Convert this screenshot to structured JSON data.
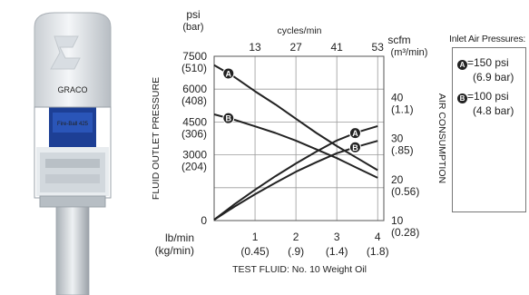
{
  "legend": {
    "title": "Inlet Air Pressures:",
    "items": [
      {
        "badge": "A",
        "label": "=150 psi",
        "sub": "(6.9 bar)"
      },
      {
        "badge": "B",
        "label": "=100 psi",
        "sub": "(4.8 bar)"
      }
    ]
  },
  "pump": {
    "brand": "GRACO",
    "badge_text": "Fire-Ball 425"
  },
  "chart_data": {
    "type": "line",
    "title": "",
    "xlabel": "TEST FLUID: No. 10 Weight Oil",
    "x_unit_label": "lb/min",
    "x_unit_label_alt": "(kg/min)",
    "xlim": [
      0,
      4.15
    ],
    "x_ticks": [
      {
        "value": 1,
        "label": "1",
        "alt": "(0.45)"
      },
      {
        "value": 2,
        "label": "2",
        "alt": "(.9)"
      },
      {
        "value": 3,
        "label": "3",
        "alt": "(1.4)"
      },
      {
        "value": 4,
        "label": "4",
        "alt": "(1.8)"
      }
    ],
    "top_axis": {
      "label": "cycles/min",
      "ticks": [
        {
          "value": 1,
          "label": "13"
        },
        {
          "value": 2,
          "label": "27"
        },
        {
          "value": 3,
          "label": "41"
        },
        {
          "value": 4,
          "label": "53"
        }
      ]
    },
    "left_axis": {
      "label": "FLUID OUTLET PRESSURE",
      "unit": "psi",
      "unit_alt": "(bar)",
      "ylim": [
        0,
        7500
      ],
      "ticks": [
        {
          "value": 0,
          "label": "0",
          "alt": ""
        },
        {
          "value": 1500,
          "label": "",
          "alt": ""
        },
        {
          "value": 3000,
          "label": "3000",
          "alt": "(204)"
        },
        {
          "value": 4500,
          "label": "4500",
          "alt": "(306)"
        },
        {
          "value": 6000,
          "label": "6000",
          "alt": "(408)"
        },
        {
          "value": 7500,
          "label": "7500",
          "alt": "(510)"
        }
      ]
    },
    "right_axis": {
      "label": "AIR CONSUMPTION",
      "unit": "scfm",
      "unit_alt": "(m³/min)",
      "ylim": [
        10,
        50
      ],
      "ticks": [
        {
          "value": 10,
          "label": "10",
          "alt": "(0.28)"
        },
        {
          "value": 20,
          "label": "20",
          "alt": "(0.56)"
        },
        {
          "value": 30,
          "label": "30",
          "alt": "(.85)"
        },
        {
          "value": 40,
          "label": "40",
          "alt": "(1.1)"
        }
      ]
    },
    "grid": true,
    "series": [
      {
        "name": "A",
        "kind": "fluid outlet pressure",
        "axis": "left",
        "x": [
          0,
          0.5,
          1,
          1.5,
          2,
          2.5,
          3,
          3.5,
          4
        ],
        "y": [
          7100,
          6550,
          5900,
          5300,
          4650,
          4000,
          3400,
          2850,
          2300
        ]
      },
      {
        "name": "B",
        "kind": "fluid outlet pressure",
        "axis": "left",
        "x": [
          0,
          0.5,
          1,
          1.5,
          2,
          2.5,
          3,
          3.5,
          4
        ],
        "y": [
          4850,
          4600,
          4300,
          4000,
          3650,
          3250,
          2850,
          2400,
          1950
        ]
      },
      {
        "name": "A",
        "kind": "air consumption",
        "axis": "right",
        "x": [
          0,
          0.5,
          1,
          1.5,
          2,
          2.5,
          3,
          3.5,
          4
        ],
        "y": [
          10.2,
          14.0,
          17.5,
          20.8,
          23.9,
          26.8,
          29.5,
          31.5,
          33.0
        ]
      },
      {
        "name": "B",
        "kind": "air consumption",
        "axis": "right",
        "x": [
          0,
          0.5,
          1,
          1.5,
          2,
          2.5,
          3,
          3.5,
          4
        ],
        "y": [
          10.2,
          13.4,
          16.4,
          19.2,
          21.9,
          24.2,
          26.4,
          28.0,
          29.4
        ]
      }
    ],
    "series_markers": [
      {
        "series": 0,
        "x": 0.35
      },
      {
        "series": 1,
        "x": 0.35
      },
      {
        "series": 2,
        "x": 3.45
      },
      {
        "series": 3,
        "x": 3.45
      }
    ],
    "colors": {
      "curve": "#222222",
      "grid": "#9a9a9a",
      "frame": "#555555"
    }
  }
}
